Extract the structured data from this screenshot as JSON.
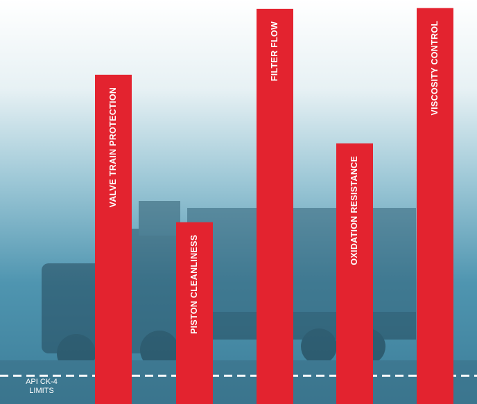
{
  "chart_data": {
    "type": "bar",
    "categories": [
      "VALVE TRAIN PROTECTION",
      "PISTON CLEANLINESS",
      "FILTER FLOW",
      "OXIDATION RESISTANCE",
      "VISCOSITY CONTROL"
    ],
    "values": [
      81.5,
      45,
      97.8,
      64.5,
      98
    ],
    "color": "#e3232f",
    "ylim": [
      0,
      100
    ],
    "reference_line": {
      "value": 7,
      "label": [
        "API CK-4",
        "LIMITS"
      ]
    }
  }
}
